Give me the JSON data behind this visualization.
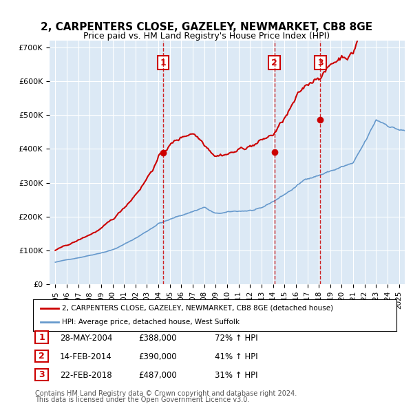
{
  "title": "2, CARPENTERS CLOSE, GAZELEY, NEWMARKET, CB8 8GE",
  "subtitle": "Price paid vs. HM Land Registry's House Price Index (HPI)",
  "legend_line1": "2, CARPENTERS CLOSE, GAZELEY, NEWMARKET, CB8 8GE (detached house)",
  "legend_line2": "HPI: Average price, detached house, West Suffolk",
  "footnote1": "Contains HM Land Registry data © Crown copyright and database right 2024.",
  "footnote2": "This data is licensed under the Open Government Licence v3.0.",
  "transactions": [
    {
      "num": 1,
      "date": "28-MAY-2004",
      "price": "£388,000",
      "hpi": "72% ↑ HPI",
      "year": 2004.4
    },
    {
      "num": 2,
      "date": "14-FEB-2014",
      "price": "£390,000",
      "hpi": "41% ↑ HPI",
      "year": 2014.12
    },
    {
      "num": 3,
      "date": "22-FEB-2018",
      "price": "£487,000",
      "hpi": "31% ↑ HPI",
      "year": 2018.14
    }
  ],
  "transaction_values": [
    388000,
    390000,
    487000
  ],
  "background_color": "#dce9f5",
  "red_color": "#cc0000",
  "blue_color": "#6699cc",
  "ylim": [
    0,
    720000
  ],
  "ytick_labels": [
    "£0",
    "£100K",
    "£200K",
    "£300K",
    "£400K",
    "£500K",
    "£600K",
    "£700K"
  ],
  "yticks": [
    0,
    100000,
    200000,
    300000,
    400000,
    500000,
    600000,
    700000
  ]
}
